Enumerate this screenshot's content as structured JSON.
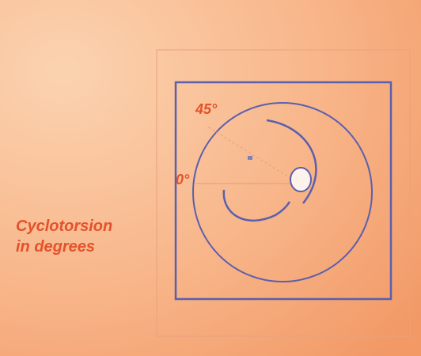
{
  "labels": {
    "angle_top": "45°",
    "angle_zero": "0°"
  },
  "caption": {
    "line1": "Cyclotorsion",
    "line2": "in degrees"
  }
}
